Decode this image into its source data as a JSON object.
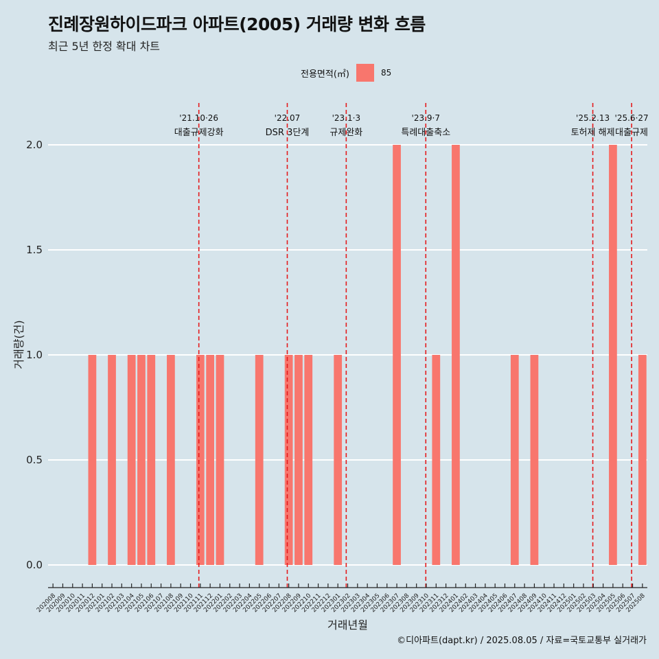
{
  "chart_data": {
    "type": "bar",
    "title": "진례장원하이드파크 아파트(2005) 거래량 변화 흐름",
    "subtitle": "최근 5년 한정 확대 차트",
    "xlabel": "거래년월",
    "ylabel": "거래량(건)",
    "ylim": [
      0,
      2
    ],
    "yticks": [
      "0.0",
      "0.5",
      "1.0",
      "1.5",
      "2.0"
    ],
    "legend": {
      "title": "전용면적(㎡)",
      "position": "top",
      "series_label": "85"
    },
    "categories": [
      "202008",
      "202009",
      "202010",
      "202011",
      "202012",
      "202101",
      "202102",
      "202103",
      "202104",
      "202105",
      "202106",
      "202107",
      "202108",
      "202109",
      "202110",
      "202111",
      "202112",
      "202201",
      "202202",
      "202203",
      "202204",
      "202205",
      "202206",
      "202207",
      "202208",
      "202209",
      "202210",
      "202211",
      "202212",
      "202301",
      "202302",
      "202303",
      "202304",
      "202305",
      "202306",
      "202307",
      "202308",
      "202309",
      "202310",
      "202311",
      "202312",
      "202401",
      "202402",
      "202403",
      "202404",
      "202405",
      "202406",
      "202407",
      "202408",
      "202409",
      "202410",
      "202411",
      "202412",
      "202501",
      "202502",
      "202503",
      "202504",
      "202505",
      "202506",
      "202507",
      "202508"
    ],
    "series": [
      {
        "name": "85",
        "color": "#f8766d",
        "values": [
          0,
          0,
          0,
          0,
          1,
          0,
          1,
          0,
          1,
          1,
          1,
          0,
          1,
          0,
          0,
          1,
          1,
          1,
          0,
          0,
          0,
          1,
          0,
          0,
          1,
          1,
          1,
          0,
          0,
          1,
          0,
          0,
          0,
          0,
          0,
          2,
          0,
          0,
          0,
          1,
          0,
          2,
          0,
          0,
          0,
          0,
          0,
          1,
          0,
          1,
          0,
          0,
          0,
          0,
          0,
          0,
          0,
          2,
          0,
          0,
          1
        ]
      }
    ],
    "annotations": [
      {
        "date": "'21.10·26",
        "text": "대출규제강화",
        "x_index": 14.85
      },
      {
        "date": "'22.07",
        "text": "DSR 3단계",
        "x_index": 23.85
      },
      {
        "date": "'23.1·3",
        "text": "규제완화",
        "x_index": 29.85
      },
      {
        "date": "'23.9·7",
        "text": "특례대출축소",
        "x_index": 37.95
      },
      {
        "date": "'25.2.13",
        "text": "토허제 해제",
        "x_index": 54.95
      },
      {
        "date": "'25.6·27",
        "text": "대출규제",
        "x_index": 58.9
      }
    ],
    "caption": "©디아파트(dapt.kr) / 2025.08.05 / 자료=국토교통부 실거래가"
  }
}
